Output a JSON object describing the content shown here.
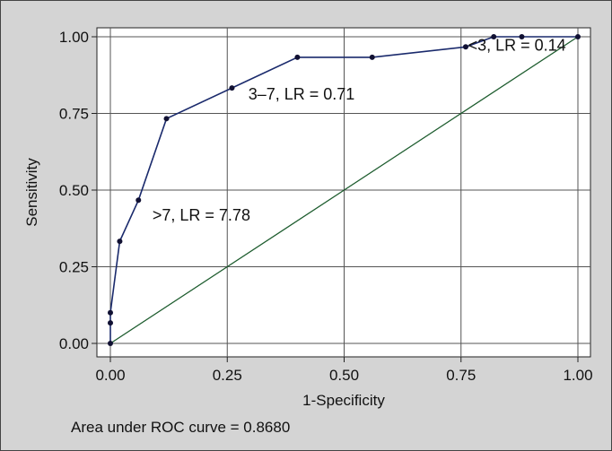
{
  "chart_data": {
    "type": "line",
    "title": "",
    "xlabel": "1-Specificity",
    "ylabel": "Sensitivity",
    "xlim": [
      0,
      1
    ],
    "ylim": [
      0,
      1
    ],
    "xticks": [
      "0.00",
      "0.25",
      "0.50",
      "0.75",
      "1.00"
    ],
    "yticks": [
      "0.00",
      "0.25",
      "0.50",
      "0.75",
      "1.00"
    ],
    "grid": true,
    "series": [
      {
        "x": [
          0.0,
          0.0,
          0.0,
          0.02,
          0.06,
          0.12,
          0.26,
          0.4,
          0.56,
          0.76,
          0.82,
          0.88,
          1.0
        ],
        "y": [
          0.0,
          0.067,
          0.1,
          0.333,
          0.467,
          0.733,
          0.833,
          0.933,
          0.933,
          0.967,
          1.0,
          1.0,
          1.0
        ],
        "color": "#1a2a6c"
      },
      {
        "x": [
          0,
          1
        ],
        "y": [
          0,
          1
        ],
        "color": "#1d5c2e"
      }
    ],
    "annotations": [
      {
        "text": ">7, LR = 7.78",
        "x": 0.09,
        "y": 0.4
      },
      {
        "text": "3–7, LR = 0.71",
        "x": 0.295,
        "y": 0.795
      },
      {
        "text": "<3, LR = 0.14",
        "x": 0.765,
        "y": 0.955
      }
    ],
    "footer": "Area under ROC curve = 0.8680"
  }
}
